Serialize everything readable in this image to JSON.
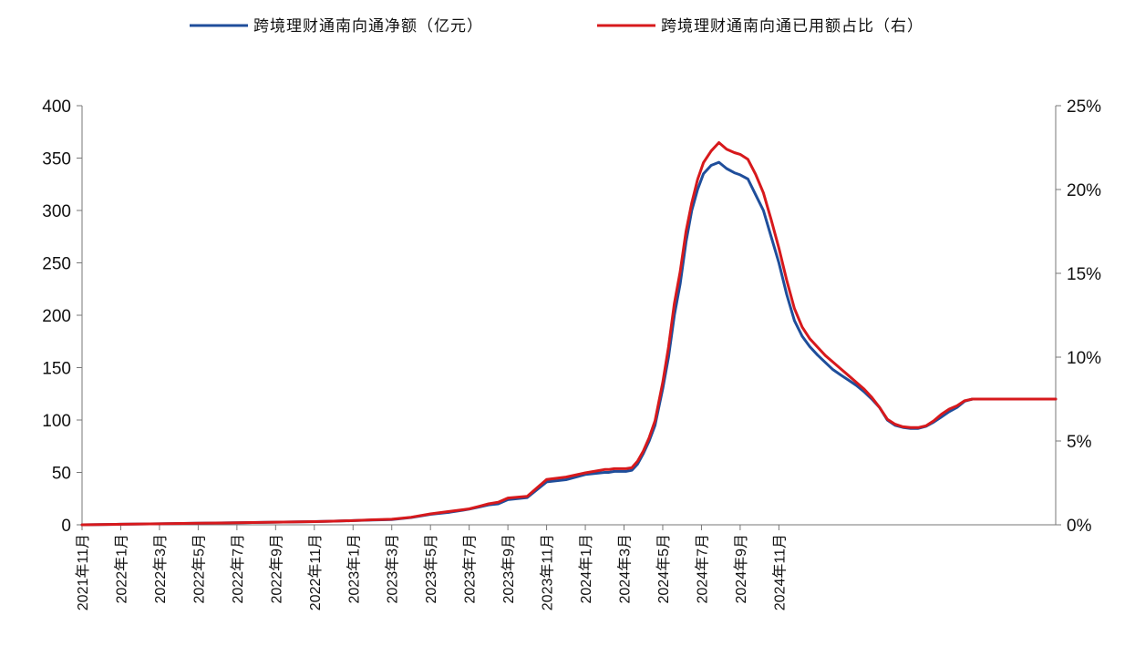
{
  "chart_data": {
    "type": "line",
    "title": "",
    "legend": {
      "placement": "top",
      "entries": [
        "跨境理财通南向通净额（亿元）",
        "跨境理财通南向通已用额占比（右）"
      ]
    },
    "left_axis": {
      "range": [
        0,
        400
      ],
      "ticks": [
        "0",
        "50",
        "100",
        "150",
        "200",
        "250",
        "300",
        "350",
        "400"
      ]
    },
    "right_axis": {
      "range": [
        0,
        25
      ],
      "ticks": [
        "0%",
        "5%",
        "10%",
        "15%",
        "20%",
        "25%"
      ]
    },
    "x_range": [
      "2021-11",
      "2025-01"
    ],
    "x_ticks": [
      "2021年11月",
      "2022年1月",
      "2022年3月",
      "2022年5月",
      "2022年7月",
      "2022年9月",
      "2022年11月",
      "2023年1月",
      "2023年3月",
      "2023年5月",
      "2023年7月",
      "2023年9月",
      "2023年11月",
      "2024年1月",
      "2024年3月",
      "2024年5月",
      "2024年7月",
      "2024年9月",
      "2024年11月"
    ],
    "grid": false,
    "series": [
      {
        "name": "跨境理财通南向通净额（亿元）",
        "axis": "left",
        "color": "#1f4e9b",
        "x": [
          0,
          2,
          4,
          6,
          8,
          10,
          12,
          13,
          14,
          15,
          16,
          17,
          18,
          19,
          19.7,
          20,
          20.5,
          21,
          21.5,
          22,
          23,
          24,
          25,
          26,
          27,
          27.2,
          27.5,
          27.8,
          28.1,
          28.4,
          28.7,
          29,
          29.3,
          29.6,
          30,
          30.3,
          30.6,
          30.9,
          31.2,
          31.5,
          31.8,
          32.1,
          32.5,
          32.9,
          33.3,
          33.7,
          34,
          34.4,
          34.8,
          35.2,
          35.6,
          36,
          36.4,
          36.8,
          37.2,
          37.6,
          38,
          38.4,
          38.8,
          39.2,
          39.6,
          40,
          40.4,
          40.8,
          41.2,
          41.6,
          42,
          42.4,
          42.8,
          43.2,
          43.6,
          44,
          44.4,
          44.8,
          45.2,
          45.6,
          46,
          46.4,
          46.8,
          47.2,
          47.6,
          48,
          48.4,
          48.8,
          49.2,
          49.6,
          50.3
        ],
        "values": [
          0,
          0.5,
          1,
          1.5,
          2,
          2.5,
          3,
          3.5,
          4,
          4.5,
          5,
          7,
          10,
          12,
          14,
          15,
          17,
          19,
          20,
          24,
          26,
          41,
          43,
          48,
          50,
          50,
          51,
          51,
          51,
          52,
          58,
          68,
          80,
          95,
          130,
          160,
          200,
          230,
          270,
          300,
          320,
          335,
          343,
          346,
          340,
          336,
          334,
          330,
          315,
          300,
          275,
          250,
          220,
          195,
          180,
          170,
          162,
          155,
          148,
          143,
          138,
          133,
          127,
          120,
          112,
          100,
          95,
          93,
          92,
          92,
          94,
          98,
          103,
          108,
          112,
          118,
          120,
          120,
          120,
          120,
          120,
          120,
          120,
          120,
          120,
          120,
          120
        ]
      },
      {
        "name": "跨境理财通南向通已用额占比（右）",
        "axis": "right",
        "color": "#d7191c",
        "x": [
          0,
          2,
          4,
          6,
          8,
          10,
          12,
          13,
          14,
          15,
          16,
          17,
          18,
          19,
          19.7,
          20,
          20.5,
          21,
          21.5,
          22,
          23,
          24,
          25,
          26,
          27,
          27.2,
          27.5,
          27.8,
          28.1,
          28.4,
          28.7,
          29,
          29.3,
          29.6,
          30,
          30.3,
          30.6,
          30.9,
          31.2,
          31.5,
          31.8,
          32.1,
          32.5,
          32.9,
          33.3,
          33.7,
          34,
          34.4,
          34.8,
          35.2,
          35.6,
          36,
          36.4,
          36.8,
          37.2,
          37.6,
          38,
          38.4,
          38.8,
          39.2,
          39.6,
          40,
          40.4,
          40.8,
          41.2,
          41.6,
          42,
          42.4,
          42.8,
          43.2,
          43.6,
          44,
          44.4,
          44.8,
          45.2,
          45.6,
          46,
          46.4,
          46.8,
          47.2,
          47.6,
          48,
          48.4,
          48.8,
          49.2,
          49.6,
          50.3
        ],
        "values": [
          0,
          0.03,
          0.06,
          0.1,
          0.12,
          0.16,
          0.19,
          0.22,
          0.25,
          0.3,
          0.33,
          0.45,
          0.65,
          0.8,
          0.9,
          0.95,
          1.1,
          1.25,
          1.35,
          1.6,
          1.7,
          2.7,
          2.85,
          3.1,
          3.3,
          3.3,
          3.35,
          3.35,
          3.35,
          3.4,
          3.8,
          4.4,
          5.2,
          6.2,
          8.5,
          10.6,
          13.2,
          15.1,
          17.5,
          19.2,
          20.6,
          21.6,
          22.3,
          22.8,
          22.4,
          22.2,
          22.1,
          21.8,
          20.9,
          19.8,
          18.2,
          16.5,
          14.6,
          12.9,
          11.8,
          11.1,
          10.6,
          10.1,
          9.7,
          9.3,
          8.9,
          8.5,
          8.1,
          7.6,
          7.0,
          6.3,
          6.0,
          5.85,
          5.8,
          5.8,
          5.9,
          6.2,
          6.6,
          6.9,
          7.1,
          7.4,
          7.5,
          7.5,
          7.5,
          7.5,
          7.5,
          7.5,
          7.5,
          7.5,
          7.5,
          7.5,
          7.5
        ]
      }
    ]
  }
}
